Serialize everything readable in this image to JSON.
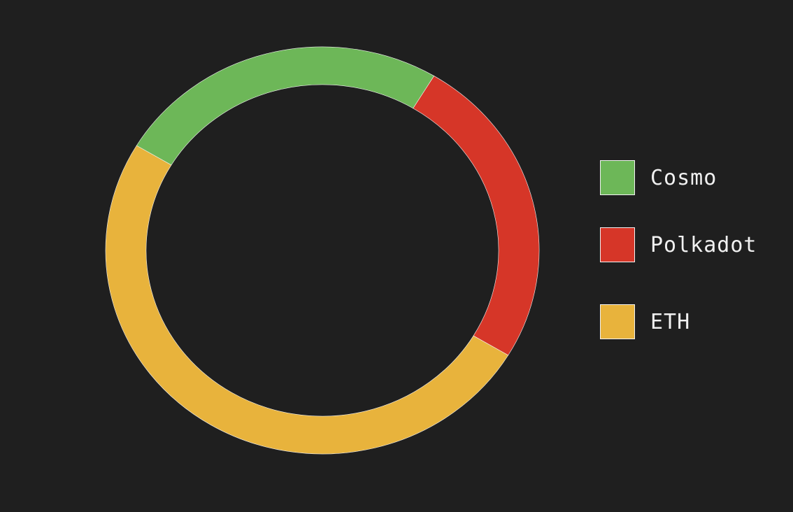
{
  "chart_data": {
    "type": "pie",
    "variant": "donut",
    "title": "",
    "categories": [
      "Cosmo",
      "Polkadot",
      "ETH"
    ],
    "values": [
      25,
      25,
      50
    ],
    "colors": [
      "#6db758",
      "#d63628",
      "#e8b33c"
    ],
    "legend_position": "right",
    "start_angle_deg": -149,
    "direction": "clockwise"
  },
  "legend": {
    "items": [
      {
        "label": "Cosmo",
        "color": "#6db758"
      },
      {
        "label": "Polkadot",
        "color": "#d63628"
      },
      {
        "label": "ETH",
        "color": "#e8b33c"
      }
    ]
  }
}
